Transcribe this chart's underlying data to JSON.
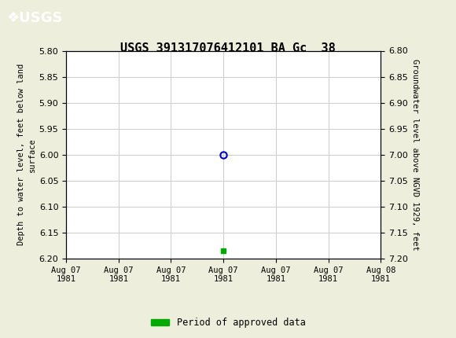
{
  "title": "USGS 391317076412101 BA Gc  38",
  "title_fontsize": 11,
  "background_color": "#eeeedd",
  "plot_bg_color": "#ffffff",
  "header_color": "#006633",
  "left_ylabel": "Depth to water level, feet below land\nsurface",
  "right_ylabel": "Groundwater level above NGVD 1929, feet",
  "ylim_left": [
    5.8,
    6.2
  ],
  "ylim_right": [
    6.8,
    7.2
  ],
  "yticks_left": [
    5.8,
    5.85,
    5.9,
    5.95,
    6.0,
    6.05,
    6.1,
    6.15,
    6.2
  ],
  "yticks_right": [
    7.2,
    7.15,
    7.1,
    7.05,
    7.0,
    6.95,
    6.9,
    6.85,
    6.8
  ],
  "grid_color": "#cccccc",
  "data_point_x": 12.0,
  "data_point_y_depth": 6.0,
  "data_point_color": "#0000cc",
  "approved_point_x": 12.0,
  "approved_point_y_depth": 6.185,
  "approved_color": "#00aa00",
  "legend_label": "Period of approved data",
  "xlabel_dates": [
    "Aug 07\n1981",
    "Aug 07\n1981",
    "Aug 07\n1981",
    "Aug 07\n1981",
    "Aug 07\n1981",
    "Aug 07\n1981",
    "Aug 08\n1981"
  ],
  "xtick_positions": [
    0,
    4,
    8,
    12,
    16,
    20,
    24
  ],
  "xlim": [
    0,
    24
  ],
  "font_family": "monospace"
}
